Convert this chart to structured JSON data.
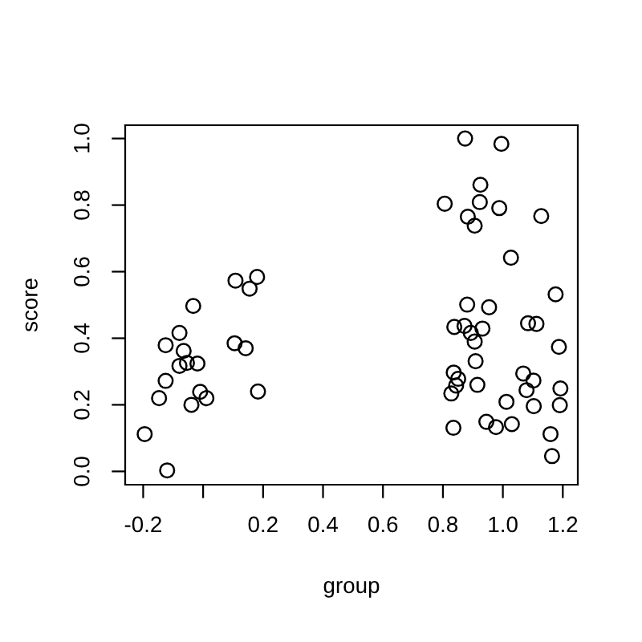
{
  "chart_data": {
    "type": "scatter",
    "xlabel": "group",
    "ylabel": "score",
    "marker": "circle",
    "grid": false,
    "xlim": [
      -0.26,
      1.25
    ],
    "ylim": [
      -0.04,
      1.04
    ],
    "xticks": [
      -0.2,
      {
        "value": 0,
        "label": null
      },
      0.2,
      0.4,
      0.6,
      0.8,
      {
        "value": 1,
        "label": "1.0"
      },
      1.2
    ],
    "yticks": [
      {
        "value": 0,
        "label": "0.0"
      },
      0.2,
      0.4,
      0.6,
      0.8,
      {
        "value": 1,
        "label": "1.0"
      }
    ],
    "series": [
      {
        "color": "#000000",
        "x": [
          -0.195,
          -0.12,
          -0.147,
          -0.125,
          -0.125,
          -0.079,
          -0.065,
          -0.079,
          -0.054,
          -0.019,
          -0.033,
          -0.01,
          -0.039,
          0.011,
          0.108,
          0.155,
          0.18,
          0.105,
          0.142,
          0.183,
          0.874,
          0.995,
          0.925,
          0.806,
          0.923,
          0.988,
          0.883,
          0.906,
          1.128,
          1.027,
          0.881,
          0.954,
          1.176,
          0.838,
          0.872,
          0.893,
          0.932,
          0.906,
          1.084,
          1.112,
          1.187,
          0.909,
          0.836,
          0.851,
          0.844,
          0.828,
          0.915,
          1.068,
          1.102,
          1.079,
          1.192,
          1.19,
          1.012,
          1.103,
          0.945,
          0.977,
          1.03,
          0.835,
          1.159,
          1.164
        ],
        "values": [
          0.112,
          0.003,
          0.22,
          0.272,
          0.379,
          0.416,
          0.362,
          0.317,
          0.326,
          0.324,
          0.497,
          0.239,
          0.2,
          0.22,
          0.573,
          0.549,
          0.584,
          0.385,
          0.37,
          0.24,
          1.0,
          0.984,
          0.861,
          0.804,
          0.809,
          0.791,
          0.765,
          0.738,
          0.767,
          0.642,
          0.501,
          0.493,
          0.532,
          0.434,
          0.437,
          0.416,
          0.429,
          0.39,
          0.445,
          0.443,
          0.374,
          0.331,
          0.297,
          0.278,
          0.258,
          0.234,
          0.26,
          0.294,
          0.273,
          0.244,
          0.249,
          0.199,
          0.209,
          0.196,
          0.149,
          0.133,
          0.142,
          0.131,
          0.112,
          0.046
        ]
      }
    ]
  }
}
